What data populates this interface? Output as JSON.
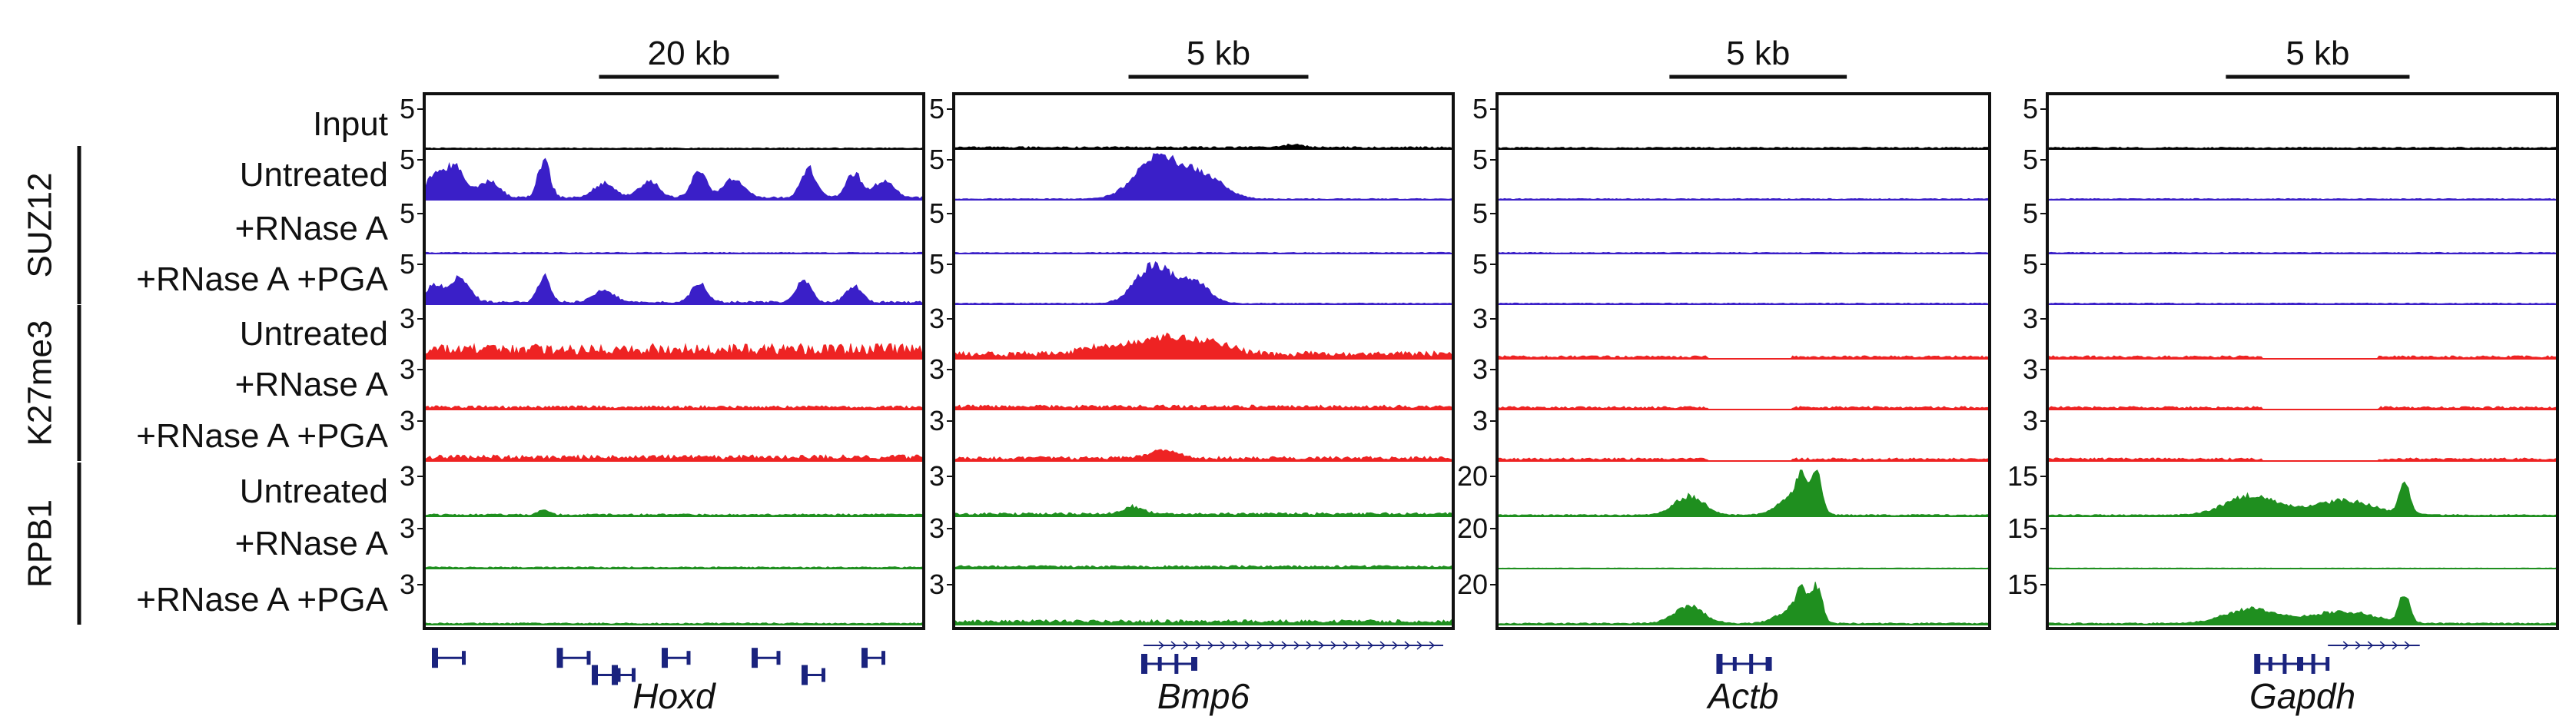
{
  "chart_data": {
    "type": "area",
    "title": "",
    "colors": {
      "input": "#000000",
      "SUZ12": "#3a1fc8",
      "K27me3": "#ee2323",
      "RPB1": "#1f8f1f",
      "gene_model": "#1a237e"
    },
    "groups": [
      {
        "name": "SUZ12",
        "tracks": [
          1,
          2,
          3
        ]
      },
      {
        "name": "K27me3",
        "tracks": [
          4,
          5,
          6
        ]
      },
      {
        "name": "RPB1",
        "tracks": [
          7,
          8,
          9
        ]
      }
    ],
    "tracks": [
      {
        "label": "Input",
        "group": "",
        "color": "input"
      },
      {
        "label": "Untreated",
        "group": "SUZ12",
        "color": "SUZ12"
      },
      {
        "label": "+RNase A",
        "group": "SUZ12",
        "color": "SUZ12"
      },
      {
        "label": "+RNase A +PGA",
        "group": "SUZ12",
        "color": "SUZ12"
      },
      {
        "label": "Untreated",
        "group": "K27me3",
        "color": "K27me3"
      },
      {
        "label": "+RNase A",
        "group": "K27me3",
        "color": "K27me3"
      },
      {
        "label": "+RNase A +PGA",
        "group": "K27me3",
        "color": "K27me3"
      },
      {
        "label": "Untreated",
        "group": "RPB1",
        "color": "RPB1"
      },
      {
        "label": "+RNase A",
        "group": "RPB1",
        "color": "RPB1"
      },
      {
        "label": "+RNase A +PGA",
        "group": "RPB1",
        "color": "RPB1"
      }
    ],
    "loci": [
      {
        "gene": "Hoxd",
        "scale_bar": "20 kb",
        "y_max": [
          "5",
          "5",
          "5",
          "5",
          "3",
          "3",
          "3",
          "3",
          "3",
          "3"
        ],
        "signal": [
          {
            "base": 0.02,
            "peaks": []
          },
          {
            "base": 0.05,
            "peaks": [
              [
                0.02,
                0.45,
                0.015
              ],
              [
                0.06,
                0.65,
                0.02
              ],
              [
                0.13,
                0.35,
                0.02
              ],
              [
                0.24,
                0.75,
                0.012
              ],
              [
                0.36,
                0.3,
                0.02
              ],
              [
                0.45,
                0.35,
                0.02
              ],
              [
                0.55,
                0.55,
                0.015
              ],
              [
                0.62,
                0.4,
                0.02
              ],
              [
                0.77,
                0.6,
                0.015
              ],
              [
                0.86,
                0.5,
                0.015
              ],
              [
                0.92,
                0.35,
                0.02
              ]
            ]
          },
          {
            "base": 0.02,
            "peaks": []
          },
          {
            "base": 0.05,
            "peaks": [
              [
                0.02,
                0.35,
                0.015
              ],
              [
                0.07,
                0.5,
                0.02
              ],
              [
                0.24,
                0.55,
                0.012
              ],
              [
                0.36,
                0.25,
                0.02
              ],
              [
                0.55,
                0.4,
                0.015
              ],
              [
                0.76,
                0.45,
                0.015
              ],
              [
                0.86,
                0.35,
                0.015
              ]
            ]
          },
          {
            "base": 0.2,
            "peaks": []
          },
          {
            "base": 0.05,
            "peaks": []
          },
          {
            "base": 0.08,
            "peaks": []
          },
          {
            "base": 0.04,
            "peaks": [
              [
                0.24,
                0.12,
                0.01
              ]
            ]
          },
          {
            "base": 0.03,
            "peaks": []
          },
          {
            "base": 0.03,
            "peaks": []
          }
        ],
        "gene_model": [
          [
            0.02,
            0.08,
            0.35
          ],
          [
            0.27,
            0.33,
            0.35
          ],
          [
            0.34,
            0.39,
            0.78
          ],
          [
            0.38,
            0.42,
            0.78
          ],
          [
            0.48,
            0.53,
            0.35
          ],
          [
            0.66,
            0.71,
            0.35
          ],
          [
            0.76,
            0.8,
            0.78
          ],
          [
            0.88,
            0.92,
            0.35
          ]
        ]
      },
      {
        "gene": "Bmp6",
        "scale_bar": "5 kb",
        "y_max": [
          "5",
          "5",
          "5",
          "5",
          "3",
          "3",
          "3",
          "3",
          "3",
          "3"
        ],
        "signal": [
          {
            "base": 0.04,
            "peaks": [
              [
                0.68,
                0.06,
                0.02
              ]
            ]
          },
          {
            "base": 0.02,
            "peaks": [
              [
                0.41,
                0.85,
                0.045
              ],
              [
                0.5,
                0.45,
                0.04
              ]
            ]
          },
          {
            "base": 0.02,
            "peaks": []
          },
          {
            "base": 0.02,
            "peaks": [
              [
                0.4,
                0.8,
                0.035
              ],
              [
                0.48,
                0.45,
                0.03
              ]
            ]
          },
          {
            "base": 0.1,
            "peaks": [
              [
                0.3,
                0.15,
                0.04
              ],
              [
                0.42,
                0.35,
                0.05
              ],
              [
                0.52,
                0.22,
                0.04
              ]
            ]
          },
          {
            "base": 0.06,
            "peaks": []
          },
          {
            "base": 0.06,
            "peaks": [
              [
                0.42,
                0.15,
                0.03
              ]
            ]
          },
          {
            "base": 0.06,
            "peaks": [
              [
                0.36,
                0.15,
                0.02
              ]
            ]
          },
          {
            "base": 0.05,
            "peaks": []
          },
          {
            "base": 0.08,
            "peaks": []
          }
        ],
        "gene_model": [
          [
            0.38,
            0.48,
            0.5
          ]
        ],
        "arrow_line": [
          0.38,
          0.98
        ]
      },
      {
        "gene": "Actb",
        "scale_bar": "5 kb",
        "y_max": [
          "5",
          "5",
          "5",
          "5",
          "3",
          "3",
          "3",
          "20",
          "20",
          "20"
        ],
        "signal": [
          {
            "base": 0.03,
            "peaks": []
          },
          {
            "base": 0.02,
            "peaks": []
          },
          {
            "base": 0.02,
            "peaks": []
          },
          {
            "base": 0.02,
            "peaks": []
          },
          {
            "base": 0.05,
            "peaks": []
          },
          {
            "base": 0.05,
            "peaks": []
          },
          {
            "base": 0.05,
            "peaks": []
          },
          {
            "base": 0.03,
            "peaks": [
              [
                0.39,
                0.4,
                0.03
              ],
              [
                0.6,
                0.35,
                0.03
              ],
              [
                0.62,
                0.6,
                0.012
              ],
              [
                0.65,
                0.8,
                0.01
              ]
            ]
          },
          {
            "base": 0.01,
            "peaks": []
          },
          {
            "base": 0.03,
            "peaks": [
              [
                0.39,
                0.35,
                0.03
              ],
              [
                0.6,
                0.3,
                0.03
              ],
              [
                0.62,
                0.5,
                0.012
              ],
              [
                0.65,
                0.7,
                0.01
              ]
            ]
          }
        ],
        "gene_model": [
          [
            0.45,
            0.55,
            0.5
          ]
        ]
      },
      {
        "gene": "Gapdh",
        "scale_bar": "5 kb",
        "y_max": [
          "5",
          "5",
          "5",
          "5",
          "3",
          "3",
          "3",
          "15",
          "15",
          "15"
        ],
        "signal": [
          {
            "base": 0.03,
            "peaks": []
          },
          {
            "base": 0.02,
            "peaks": []
          },
          {
            "base": 0.02,
            "peaks": []
          },
          {
            "base": 0.02,
            "peaks": []
          },
          {
            "base": 0.05,
            "peaks": []
          },
          {
            "base": 0.05,
            "peaks": []
          },
          {
            "base": 0.05,
            "peaks": []
          },
          {
            "base": 0.03,
            "peaks": [
              [
                0.4,
                0.4,
                0.05
              ],
              [
                0.58,
                0.3,
                0.06
              ],
              [
                0.7,
                0.7,
                0.01
              ]
            ]
          },
          {
            "base": 0.01,
            "peaks": []
          },
          {
            "base": 0.03,
            "peaks": [
              [
                0.4,
                0.3,
                0.05
              ],
              [
                0.58,
                0.25,
                0.06
              ],
              [
                0.7,
                0.6,
                0.01
              ]
            ]
          }
        ],
        "gene_model": [
          [
            0.41,
            0.55,
            0.5
          ]
        ],
        "arrow_line": [
          0.55,
          0.73
        ]
      }
    ]
  }
}
